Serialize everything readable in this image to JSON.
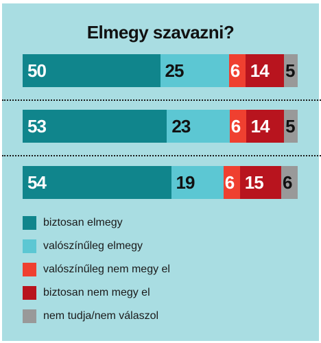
{
  "chart_data": {
    "type": "bar",
    "stacked": true,
    "orientation": "horizontal",
    "title": "Elmegy szavazni?",
    "rows": [
      {
        "values": [
          50,
          25,
          6,
          14,
          5
        ]
      },
      {
        "values": [
          53,
          23,
          6,
          14,
          5
        ]
      },
      {
        "values": [
          54,
          19,
          6,
          15,
          6
        ]
      }
    ],
    "series": [
      {
        "name": "biztosan elmegy",
        "color": "#10858c",
        "label_color": "#ffffff"
      },
      {
        "name": "valószínűleg elmegy",
        "color": "#5cc7d3",
        "label_color": "#111111"
      },
      {
        "name": "valószínűleg nem megy el",
        "color": "#ef4030",
        "label_color": "#ffffff"
      },
      {
        "name": "biztosan nem megy el",
        "color": "#b8141e",
        "label_color": "#ffffff"
      },
      {
        "name": "nem tudja/nem válaszol",
        "color": "#999999",
        "label_color": "#111111"
      }
    ],
    "legend_position": "bottom-left"
  }
}
